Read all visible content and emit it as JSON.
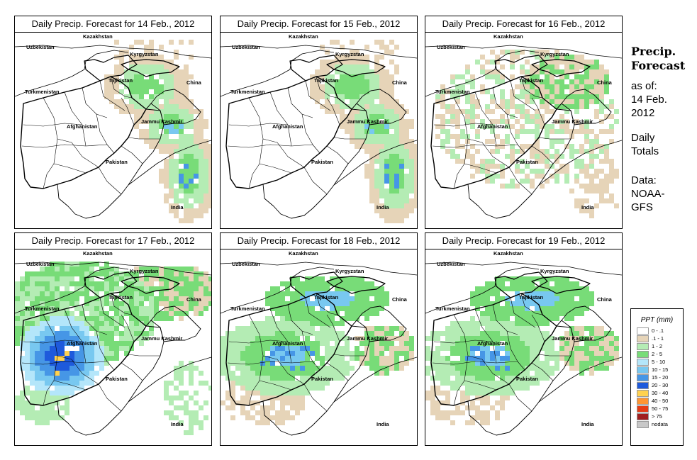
{
  "panels": [
    {
      "title": "Daily Precip. Forecast for  14 Feb., 2012",
      "intensity": 1,
      "pattern": "ne"
    },
    {
      "title": "Daily Precip. Forecast for  15 Feb., 2012",
      "intensity": 1,
      "pattern": "ne"
    },
    {
      "title": "Daily Precip. Forecast for  16 Feb., 2012",
      "intensity": 1,
      "pattern": "broad"
    },
    {
      "title": "Daily Precip. Forecast for  17 Feb., 2012",
      "intensity": 3,
      "pattern": "west"
    },
    {
      "title": "Daily Precip. Forecast for  18 Feb., 2012",
      "intensity": 2,
      "pattern": "center"
    },
    {
      "title": "Daily Precip. Forecast for  19 Feb., 2012",
      "intensity": 2,
      "pattern": "center"
    }
  ],
  "map_labels": {
    "kazakhstan": "Kazakhstan",
    "uzbekistan": "Uzbekistan",
    "kyrgyzstan": "Kyrgyzstan",
    "tajikistan": "Tajikistan",
    "turkmenistan": "Turkmenistan",
    "china": "China",
    "afghanistan": "Afghanistan",
    "jammu_kashmir": "Jammu Kashmir",
    "pakistan": "Pakistan",
    "india": "India"
  },
  "sidebar": {
    "title_line1": "Precip.",
    "title_line2": "Forecast",
    "asof_line1": "as of:",
    "asof_line2": "14 Feb.",
    "asof_line3": "2012",
    "daily_line1": "Daily",
    "daily_line2": "Totals",
    "data_line1": "Data:",
    "data_line2": "NOAA-",
    "data_line3": "GFS"
  },
  "legend": {
    "title": "PPT (mm)",
    "items": [
      {
        "label": "0 - .1",
        "color": "#ffffff"
      },
      {
        "label": ".1 - 1",
        "color": "#e6d4b8"
      },
      {
        "label": "1 - 2",
        "color": "#b4ecb4"
      },
      {
        "label": "2 - 5",
        "color": "#78dc78"
      },
      {
        "label": "5 - 10",
        "color": "#b4e6fa"
      },
      {
        "label": "10 - 15",
        "color": "#78c8f0"
      },
      {
        "label": "15 - 20",
        "color": "#4696e6"
      },
      {
        "label": "20 - 30",
        "color": "#1e5adc"
      },
      {
        "label": "30 - 40",
        "color": "#ffd250"
      },
      {
        "label": "40 - 50",
        "color": "#ff9632"
      },
      {
        "label": "50 - 75",
        "color": "#e63c14"
      },
      {
        "label": "> 75",
        "color": "#a01e1e"
      },
      {
        "label": "nodata",
        "color": "#c8c8c8"
      }
    ]
  }
}
